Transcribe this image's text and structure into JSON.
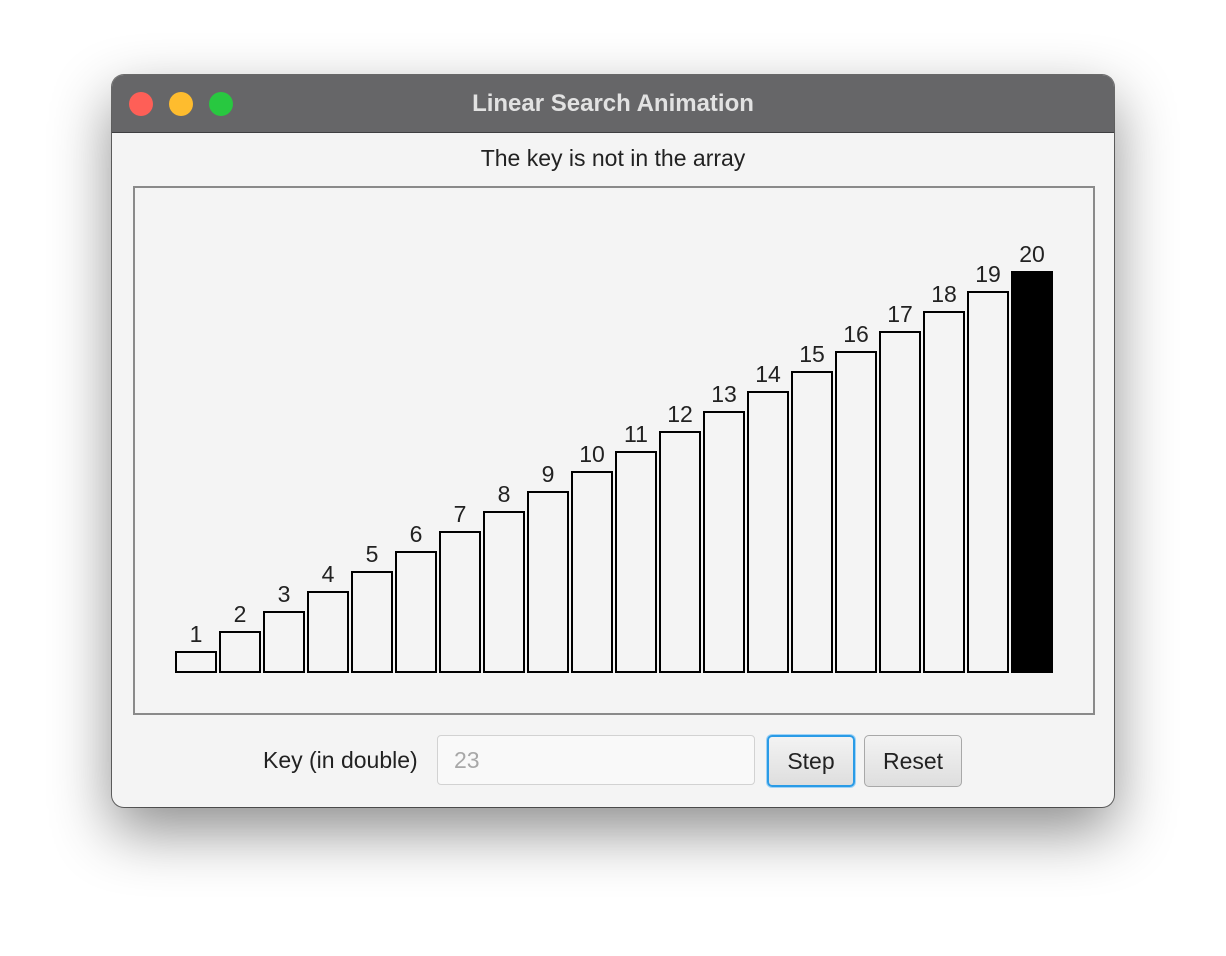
{
  "window": {
    "title": "Linear Search Animation"
  },
  "status": {
    "message": "The key is not in the array"
  },
  "chart_data": {
    "type": "bar",
    "categories": [
      "1",
      "2",
      "3",
      "4",
      "5",
      "6",
      "7",
      "8",
      "9",
      "10",
      "11",
      "12",
      "13",
      "14",
      "15",
      "16",
      "17",
      "18",
      "19",
      "20"
    ],
    "values": [
      1,
      2,
      3,
      4,
      5,
      6,
      7,
      8,
      9,
      10,
      11,
      12,
      13,
      14,
      15,
      16,
      17,
      18,
      19,
      20
    ],
    "highlighted_index": 19,
    "highlight_color": "#000000",
    "bar_color": "#f4f4f4",
    "bar_stroke": "#000000",
    "title": "",
    "xlabel": "",
    "ylabel": ""
  },
  "controls": {
    "key_label": "Key (in double)",
    "key_placeholder": "23",
    "key_value": "",
    "step_label": "Step",
    "reset_label": "Reset"
  }
}
